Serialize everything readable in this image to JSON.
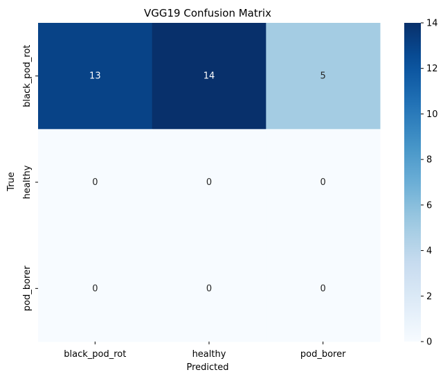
{
  "chart_data": {
    "type": "heatmap",
    "title": "VGG19 Confusion Matrix",
    "xlabel": "Predicted",
    "ylabel": "True",
    "x_categories": [
      "black_pod_rot",
      "healthy",
      "pod_borer"
    ],
    "y_categories": [
      "black_pod_rot",
      "healthy",
      "pod_borer"
    ],
    "values": [
      [
        13,
        14,
        5
      ],
      [
        0,
        0,
        0
      ],
      [
        0,
        0,
        0
      ]
    ],
    "colormap": "Blues",
    "color_range": [
      0,
      14
    ],
    "colorbar_ticks": [
      "0",
      "2",
      "4",
      "6",
      "8",
      "10",
      "12",
      "14"
    ],
    "annotations": true,
    "colors": {
      "low": "#f7fbff",
      "high": "#08306b"
    }
  }
}
